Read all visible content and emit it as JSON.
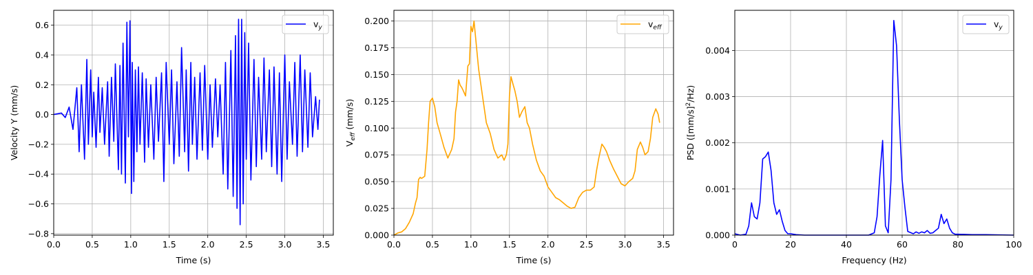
{
  "chart_data": [
    {
      "type": "line",
      "xlabel": "Time (s)",
      "ylabel": "Velocity Y (mm/s)",
      "xlim": [
        0,
        3.63
      ],
      "ylim": [
        -0.81,
        0.7
      ],
      "xticks": [
        0.0,
        0.5,
        1.0,
        1.5,
        2.0,
        2.5,
        3.0,
        3.5
      ],
      "xtick_labels": [
        "0.0",
        "0.5",
        "1.0",
        "1.5",
        "2.0",
        "2.5",
        "3.0",
        "3.5"
      ],
      "yticks": [
        -0.8,
        -0.6,
        -0.4,
        -0.2,
        0.0,
        0.2,
        0.4,
        0.6
      ],
      "ytick_labels": [
        "−0.8",
        "−0.6",
        "−0.4",
        "−0.2",
        "0.0",
        "0.2",
        "0.4",
        "0.6"
      ],
      "grid": true,
      "legend_position": "top-right",
      "series": [
        {
          "name": "v_y",
          "legend_base": "v",
          "legend_sub": "y",
          "color": "#0000ff",
          "x": [
            0.0,
            0.1,
            0.15,
            0.2,
            0.25,
            0.3,
            0.33,
            0.36,
            0.4,
            0.43,
            0.45,
            0.48,
            0.5,
            0.52,
            0.55,
            0.58,
            0.6,
            0.63,
            0.66,
            0.7,
            0.72,
            0.75,
            0.78,
            0.8,
            0.84,
            0.86,
            0.88,
            0.9,
            0.93,
            0.95,
            0.97,
            0.99,
            1.01,
            1.02,
            1.04,
            1.06,
            1.08,
            1.1,
            1.12,
            1.15,
            1.18,
            1.2,
            1.23,
            1.26,
            1.3,
            1.33,
            1.36,
            1.4,
            1.43,
            1.46,
            1.5,
            1.53,
            1.56,
            1.6,
            1.63,
            1.66,
            1.7,
            1.72,
            1.75,
            1.78,
            1.8,
            1.83,
            1.86,
            1.9,
            1.93,
            1.96,
            2.0,
            2.03,
            2.06,
            2.1,
            2.13,
            2.16,
            2.2,
            2.23,
            2.26,
            2.3,
            2.33,
            2.36,
            2.38,
            2.4,
            2.42,
            2.44,
            2.46,
            2.48,
            2.5,
            2.53,
            2.56,
            2.6,
            2.63,
            2.66,
            2.7,
            2.73,
            2.76,
            2.8,
            2.83,
            2.86,
            2.9,
            2.93,
            2.96,
            3.0,
            3.03,
            3.06,
            3.1,
            3.13,
            3.16,
            3.2,
            3.23,
            3.26,
            3.3,
            3.33,
            3.36,
            3.4,
            3.43,
            3.45
          ],
          "y": [
            0.0,
            0.01,
            -0.02,
            0.05,
            -0.1,
            0.18,
            -0.25,
            0.2,
            -0.3,
            0.37,
            -0.2,
            0.3,
            -0.15,
            0.15,
            -0.22,
            0.25,
            -0.12,
            0.18,
            -0.2,
            0.22,
            -0.28,
            0.25,
            -0.18,
            0.34,
            -0.37,
            0.33,
            -0.4,
            0.48,
            -0.46,
            0.62,
            -0.15,
            0.63,
            -0.53,
            0.35,
            -0.45,
            0.3,
            -0.25,
            0.32,
            -0.2,
            0.28,
            -0.32,
            0.24,
            -0.22,
            0.2,
            -0.3,
            0.25,
            -0.18,
            0.28,
            -0.45,
            0.35,
            -0.2,
            0.3,
            -0.33,
            0.22,
            -0.28,
            0.45,
            -0.25,
            0.3,
            -0.38,
            0.35,
            -0.2,
            0.25,
            -0.3,
            0.28,
            -0.24,
            0.33,
            -0.3,
            0.2,
            -0.22,
            0.24,
            -0.15,
            0.2,
            -0.4,
            0.35,
            -0.5,
            0.43,
            -0.55,
            0.53,
            -0.63,
            0.64,
            -0.74,
            0.64,
            -0.6,
            0.55,
            -0.3,
            0.48,
            -0.44,
            0.37,
            -0.35,
            0.25,
            -0.3,
            0.38,
            -0.25,
            0.3,
            -0.35,
            0.32,
            -0.4,
            0.28,
            -0.45,
            0.4,
            -0.3,
            0.22,
            -0.2,
            0.35,
            -0.28,
            0.4,
            -0.25,
            0.3,
            -0.22,
            0.28,
            -0.15,
            0.12,
            -0.1,
            0.1
          ]
        }
      ]
    },
    {
      "type": "line",
      "xlabel": "Time (s)",
      "ylabel_base": "V",
      "ylabel_sub": "eff",
      "ylabel_unit": " (mm/s)",
      "xlim": [
        0,
        3.63
      ],
      "ylim": [
        0,
        0.21
      ],
      "xticks": [
        0.0,
        0.5,
        1.0,
        1.5,
        2.0,
        2.5,
        3.0,
        3.5
      ],
      "xtick_labels": [
        "0.0",
        "0.5",
        "1.0",
        "1.5",
        "2.0",
        "2.5",
        "3.0",
        "3.5"
      ],
      "yticks": [
        0.0,
        0.025,
        0.05,
        0.075,
        0.1,
        0.125,
        0.15,
        0.175,
        0.2
      ],
      "ytick_labels": [
        "0.000",
        "0.025",
        "0.050",
        "0.075",
        "0.100",
        "0.125",
        "0.150",
        "0.175",
        "0.200"
      ],
      "grid": true,
      "legend_position": "top-right",
      "series": [
        {
          "name": "v_eff",
          "legend_base": "v",
          "legend_sub": "eff",
          "color": "#ffa500",
          "x": [
            0.0,
            0.05,
            0.1,
            0.15,
            0.2,
            0.25,
            0.28,
            0.3,
            0.32,
            0.34,
            0.36,
            0.4,
            0.43,
            0.45,
            0.47,
            0.5,
            0.53,
            0.56,
            0.6,
            0.65,
            0.7,
            0.75,
            0.78,
            0.8,
            0.82,
            0.84,
            0.86,
            0.88,
            0.9,
            0.93,
            0.96,
            0.98,
            1.0,
            1.02,
            1.04,
            1.06,
            1.08,
            1.1,
            1.13,
            1.16,
            1.2,
            1.25,
            1.3,
            1.35,
            1.4,
            1.43,
            1.46,
            1.48,
            1.5,
            1.52,
            1.55,
            1.57,
            1.6,
            1.63,
            1.66,
            1.7,
            1.73,
            1.76,
            1.8,
            1.85,
            1.9,
            1.95,
            2.0,
            2.05,
            2.1,
            2.15,
            2.2,
            2.25,
            2.3,
            2.35,
            2.4,
            2.45,
            2.5,
            2.55,
            2.6,
            2.63,
            2.66,
            2.7,
            2.73,
            2.76,
            2.8,
            2.85,
            2.9,
            2.95,
            3.0,
            3.05,
            3.1,
            3.13,
            3.16,
            3.2,
            3.23,
            3.26,
            3.3,
            3.33,
            3.36,
            3.4,
            3.43,
            3.45
          ],
          "y": [
            0.0,
            0.002,
            0.003,
            0.006,
            0.012,
            0.02,
            0.03,
            0.035,
            0.052,
            0.054,
            0.053,
            0.055,
            0.08,
            0.105,
            0.125,
            0.128,
            0.12,
            0.105,
            0.095,
            0.082,
            0.072,
            0.08,
            0.09,
            0.115,
            0.125,
            0.145,
            0.14,
            0.138,
            0.135,
            0.13,
            0.158,
            0.16,
            0.195,
            0.19,
            0.2,
            0.185,
            0.17,
            0.155,
            0.14,
            0.125,
            0.105,
            0.095,
            0.08,
            0.072,
            0.075,
            0.07,
            0.075,
            0.085,
            0.13,
            0.148,
            0.14,
            0.135,
            0.125,
            0.11,
            0.115,
            0.12,
            0.105,
            0.1,
            0.085,
            0.07,
            0.06,
            0.055,
            0.045,
            0.04,
            0.035,
            0.033,
            0.03,
            0.027,
            0.025,
            0.026,
            0.035,
            0.04,
            0.042,
            0.042,
            0.045,
            0.06,
            0.072,
            0.085,
            0.082,
            0.078,
            0.07,
            0.062,
            0.055,
            0.048,
            0.046,
            0.05,
            0.053,
            0.06,
            0.08,
            0.087,
            0.082,
            0.075,
            0.078,
            0.09,
            0.11,
            0.118,
            0.113,
            0.105
          ]
        }
      ]
    },
    {
      "type": "line",
      "xlabel": "Frequency (Hz)",
      "ylabel_pre": "PSD ([mm/s]",
      "ylabel_sup": "2",
      "ylabel_post": "/Hz)",
      "xlim": [
        0,
        100
      ],
      "ylim": [
        0,
        0.00487
      ],
      "xticks": [
        0,
        20,
        40,
        60,
        80,
        100
      ],
      "xtick_labels": [
        "0",
        "20",
        "40",
        "60",
        "80",
        "100"
      ],
      "yticks": [
        0,
        0.001,
        0.002,
        0.003,
        0.004
      ],
      "ytick_labels": [
        "0.000",
        "0.001",
        "0.002",
        "0.003",
        "0.004"
      ],
      "grid": true,
      "legend_position": "top-right",
      "series": [
        {
          "name": "v_y",
          "legend_base": "v",
          "legend_sub": "y",
          "color": "#0000ff",
          "x": [
            0,
            2,
            4,
            5,
            6,
            7,
            8,
            9,
            10,
            11,
            12,
            13,
            14,
            15,
            16,
            17,
            18,
            19,
            20,
            22,
            25,
            30,
            40,
            48,
            50,
            51,
            52,
            53,
            54,
            55,
            56,
            57,
            58,
            59,
            60,
            61,
            62,
            64,
            65,
            66,
            67,
            68,
            69,
            70,
            71,
            72,
            73,
            74,
            75,
            76,
            77,
            78,
            79,
            80,
            85,
            90,
            100
          ],
          "y": [
            3e-05,
            0.0,
            2e-05,
            0.0002,
            0.0007,
            0.0004,
            0.00035,
            0.0007,
            0.00165,
            0.0017,
            0.0018,
            0.0014,
            0.0007,
            0.00045,
            0.00055,
            0.0003,
            0.0001,
            3e-05,
            3e-05,
            1e-05,
            0.0,
            0.0,
            0.0,
            0.0,
            5e-05,
            0.0004,
            0.0013,
            0.00205,
            0.0002,
            5e-05,
            0.0012,
            0.00465,
            0.0041,
            0.0025,
            0.0012,
            0.0006,
            8e-05,
            3e-05,
            7e-05,
            4e-05,
            7e-05,
            5e-05,
            0.0001,
            4e-05,
            5e-05,
            0.0001,
            0.00015,
            0.00045,
            0.00025,
            0.00035,
            0.00015,
            5e-05,
            2e-05,
            2e-05,
            1e-05,
            1e-05,
            0.0
          ]
        }
      ]
    }
  ]
}
